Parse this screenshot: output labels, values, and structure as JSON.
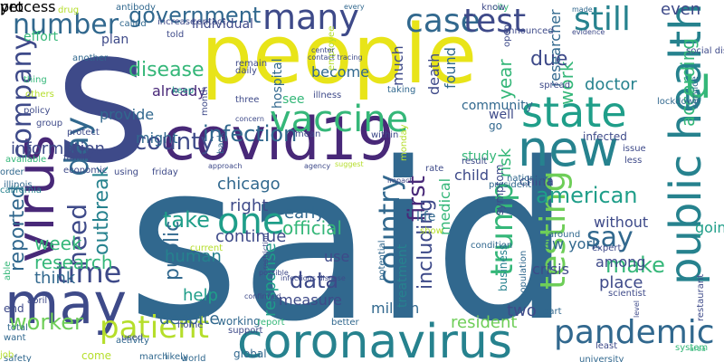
{
  "colors": {
    "background": "#ffffff",
    "palette": [
      "#440154",
      "#482878",
      "#3e4a89",
      "#31688e",
      "#26828e",
      "#1f9e89",
      "#35b779",
      "#6ece58",
      "#b5de2b",
      "#fde725"
    ]
  },
  "words": [
    {
      "text": "said",
      "color": "#31688e"
    },
    {
      "text": "s",
      "color": "#3e4a89"
    },
    {
      "text": "people",
      "color": "#e8e419"
    },
    {
      "text": "covid19",
      "color": "#482878"
    },
    {
      "text": "coronavirus",
      "color": "#26828e"
    },
    {
      "text": "may",
      "color": "#3e4a89"
    },
    {
      "text": "virus",
      "color": "#482878"
    },
    {
      "text": "new",
      "color": "#26828e"
    },
    {
      "text": "state",
      "color": "#1f9e89"
    },
    {
      "text": "case",
      "color": "#31688e"
    },
    {
      "text": "test",
      "color": "#3e4a89"
    },
    {
      "text": "vaccine",
      "color": "#35b779"
    },
    {
      "text": "one",
      "color": "#1f9e89"
    },
    {
      "text": "public health",
      "color": "#26828e"
    },
    {
      "text": "pandemic",
      "color": "#31688e"
    },
    {
      "text": "patient",
      "color": "#b5de2b"
    },
    {
      "text": "testing",
      "color": "#6ece58"
    },
    {
      "text": "trump",
      "color": "#35b779"
    },
    {
      "text": "many",
      "color": "#3e4a89"
    },
    {
      "text": "u",
      "color": "#35b779"
    },
    {
      "text": "time",
      "color": "#3e4a89"
    },
    {
      "text": "day",
      "color": "#31688e"
    },
    {
      "text": "number",
      "color": "#31688e"
    },
    {
      "text": "country",
      "color": "#31688e"
    },
    {
      "text": "still",
      "color": "#26828e"
    },
    {
      "text": "need",
      "color": "#3e4a89"
    },
    {
      "text": "company",
      "color": "#3e4a89"
    },
    {
      "text": "say",
      "color": "#31688e"
    },
    {
      "text": "government",
      "color": "#31688e"
    },
    {
      "text": "disease",
      "color": "#35b779"
    },
    {
      "text": "county",
      "color": "#3e4a89"
    },
    {
      "text": "infection",
      "color": "#31688e"
    },
    {
      "text": "american",
      "color": "#1f9e89"
    },
    {
      "text": "reported",
      "color": "#31688e"
    },
    {
      "text": "outbreak",
      "color": "#26828e"
    },
    {
      "text": "worker",
      "color": "#6ece58"
    },
    {
      "text": "make",
      "color": "#35b779"
    },
    {
      "text": "take",
      "color": "#1f9e89"
    },
    {
      "text": "data",
      "color": "#3e4a89"
    },
    {
      "text": "first",
      "color": "#482878"
    },
    {
      "text": "including",
      "color": "#3e4a89"
    },
    {
      "text": "public",
      "color": "#31688e"
    },
    {
      "text": "year",
      "color": "#35b779"
    },
    {
      "text": "according",
      "color": "#35b779"
    },
    {
      "text": "work",
      "color": "#35b779"
    },
    {
      "text": "even",
      "color": "#3e4a89"
    },
    {
      "text": "due",
      "color": "#3e4a89"
    },
    {
      "text": "research",
      "color": "#35b779"
    },
    {
      "text": "information",
      "color": "#3e4a89"
    },
    {
      "text": "week",
      "color": "#35b779"
    },
    {
      "text": "think",
      "color": "#31688e"
    },
    {
      "text": "help",
      "color": "#1f9e89"
    },
    {
      "text": "despite",
      "color": "#31688e"
    },
    {
      "text": "human",
      "color": "#26828e"
    },
    {
      "text": "official",
      "color": "#35b779"
    },
    {
      "text": "continue",
      "color": "#3e4a89"
    },
    {
      "text": "right",
      "color": "#3e4a89"
    },
    {
      "text": "chicago",
      "color": "#31688e"
    },
    {
      "text": "early",
      "color": "#31688e"
    },
    {
      "text": "use",
      "color": "#3e4a89"
    },
    {
      "text": "response",
      "color": "#1f9e89"
    },
    {
      "text": "measure",
      "color": "#3e4a89"
    },
    {
      "text": "million",
      "color": "#31688e"
    },
    {
      "text": "resident",
      "color": "#6ece58"
    },
    {
      "text": "new york",
      "color": "#31688e"
    },
    {
      "text": "crisis",
      "color": "#3e4a89"
    },
    {
      "text": "two",
      "color": "#3e4a89"
    },
    {
      "text": "place",
      "color": "#3e4a89"
    },
    {
      "text": "among",
      "color": "#3e4a89"
    },
    {
      "text": "without",
      "color": "#3e4a89"
    },
    {
      "text": "going",
      "color": "#1f9e89"
    },
    {
      "text": "doctor",
      "color": "#26828e"
    },
    {
      "text": "researcher",
      "color": "#31688e"
    },
    {
      "text": "much",
      "color": "#3e4a89"
    },
    {
      "text": "death",
      "color": "#3e4a89"
    },
    {
      "text": "found",
      "color": "#31688e"
    },
    {
      "text": "become",
      "color": "#31688e"
    },
    {
      "text": "see",
      "color": "#35b779"
    },
    {
      "text": "might",
      "color": "#31688e"
    },
    {
      "text": "provide",
      "color": "#31688e"
    },
    {
      "text": "already",
      "color": "#482878"
    },
    {
      "text": "hospital",
      "color": "#31688e"
    },
    {
      "text": "individual",
      "color": "#3e4a89"
    },
    {
      "text": "plan",
      "color": "#3e4a89"
    },
    {
      "text": "effort",
      "color": "#35b779"
    },
    {
      "text": "community",
      "color": "#31688e"
    },
    {
      "text": "well",
      "color": "#3e4a89"
    },
    {
      "text": "go",
      "color": "#31688e"
    },
    {
      "text": "child",
      "color": "#3e4a89"
    },
    {
      "text": "risk",
      "color": "#35b779"
    },
    {
      "text": "china",
      "color": "#3e4a89"
    },
    {
      "text": "medical",
      "color": "#35b779"
    },
    {
      "text": "life",
      "color": "#31688e"
    },
    {
      "text": "treatment",
      "color": "#26828e"
    },
    {
      "text": "symptom",
      "color": "#3e4a89"
    },
    {
      "text": "business",
      "color": "#26828e"
    },
    {
      "text": "potential",
      "color": "#31688e"
    },
    {
      "text": "population",
      "color": "#31688e"
    },
    {
      "text": "study",
      "color": "#35b779"
    },
    {
      "text": "spread",
      "color": "#3e4a89"
    },
    {
      "text": "lockdown",
      "color": "#31688e"
    },
    {
      "text": "infected",
      "color": "#3e4a89"
    },
    {
      "text": "issue",
      "color": "#3e4a89"
    },
    {
      "text": "less",
      "color": "#3e4a89"
    },
    {
      "text": "result",
      "color": "#3e4a89"
    },
    {
      "text": "rate",
      "color": "#3e4a89"
    },
    {
      "text": "monday",
      "color": "#b5de2b"
    },
    {
      "text": "taking",
      "color": "#31688e"
    },
    {
      "text": "within",
      "color": "#3e4a89"
    },
    {
      "text": "mean",
      "color": "#3e4a89"
    },
    {
      "text": "using",
      "color": "#3e4a89"
    },
    {
      "text": "friday",
      "color": "#3e4a89"
    },
    {
      "text": "working",
      "color": "#31688e"
    },
    {
      "text": "home",
      "color": "#3e4a89"
    },
    {
      "text": "support",
      "color": "#3e4a89"
    },
    {
      "text": "better",
      "color": "#31688e"
    },
    {
      "text": "global",
      "color": "#31688e"
    },
    {
      "text": "come",
      "color": "#b5de2b"
    },
    {
      "text": "used",
      "color": "#3e4a89"
    },
    {
      "text": "march",
      "color": "#31688e"
    },
    {
      "text": "likely",
      "color": "#31688e"
    },
    {
      "text": "world",
      "color": "#31688e"
    },
    {
      "text": "end",
      "color": "#3e4a89"
    },
    {
      "text": "april",
      "color": "#3e4a89"
    },
    {
      "text": "total",
      "color": "#31688e"
    },
    {
      "text": "activity",
      "color": "#31688e"
    },
    {
      "text": "want",
      "color": "#31688e"
    },
    {
      "text": "safety",
      "color": "#31688e"
    },
    {
      "text": "able",
      "color": "#35b779"
    },
    {
      "text": "illinois",
      "color": "#31688e"
    },
    {
      "text": "available",
      "color": "#35b779"
    },
    {
      "text": "protect",
      "color": "#3e4a89"
    },
    {
      "text": "economic",
      "color": "#3e4a89"
    },
    {
      "text": "family",
      "color": "#3e4a89"
    },
    {
      "text": "group",
      "color": "#3e4a89"
    },
    {
      "text": "policy",
      "color": "#3e4a89"
    },
    {
      "text": "others",
      "color": "#b5de2b"
    },
    {
      "text": "thing",
      "color": "#35b779"
    },
    {
      "text": "another",
      "color": "#31688e"
    },
    {
      "text": "drug",
      "color": "#b5de2b"
    },
    {
      "text": "antibody",
      "color": "#31688e"
    },
    {
      "text": "called",
      "color": "#31688e"
    },
    {
      "text": "increase",
      "color": "#3e4a89"
    },
    {
      "text": "contact",
      "color": "#3e4a89"
    },
    {
      "text": "told",
      "color": "#3e4a89"
    },
    {
      "text": "remain",
      "color": "#3e4a89"
    },
    {
      "text": "daily",
      "color": "#3e4a89"
    },
    {
      "text": "keep",
      "color": "#1f9e89"
    },
    {
      "text": "three",
      "color": "#3e4a89"
    },
    {
      "text": "illness",
      "color": "#3e4a89"
    },
    {
      "text": "employee",
      "color": "#b5de2b"
    },
    {
      "text": "announced",
      "color": "#3e4a89"
    },
    {
      "text": "open",
      "color": "#3e4a89"
    },
    {
      "text": "city",
      "color": "#35b779"
    },
    {
      "text": "know",
      "color": "#3e4a89"
    },
    {
      "text": "part",
      "color": "#31688e"
    },
    {
      "text": "expert",
      "color": "#3e4a89"
    },
    {
      "text": "scientist",
      "color": "#3e4a89"
    },
    {
      "text": "system",
      "color": "#35b779"
    },
    {
      "text": "least",
      "color": "#3e4a89"
    },
    {
      "text": "university",
      "color": "#31688e"
    },
    {
      "text": "restaurant",
      "color": "#3e4a89"
    },
    {
      "text": "social distancing",
      "color": "#3e4a89"
    },
    {
      "text": "service",
      "color": "#31688e"
    },
    {
      "text": "president",
      "color": "#31688e"
    },
    {
      "text": "national",
      "color": "#31688e"
    },
    {
      "text": "report",
      "color": "#35b779"
    },
    {
      "text": "show",
      "color": "#b5de2b"
    },
    {
      "text": "condition",
      "color": "#31688e"
    },
    {
      "text": "around",
      "color": "#31688e"
    },
    {
      "text": "month",
      "color": "#3e4a89"
    },
    {
      "text": "back",
      "color": "#31688e"
    },
    {
      "text": "current",
      "color": "#b5de2b"
    },
    {
      "text": "job",
      "color": "#b5de2b"
    },
    {
      "text": "california",
      "color": "#26828e"
    },
    {
      "text": "order",
      "color": "#31688e"
    },
    {
      "text": "made",
      "color": "#31688e"
    },
    {
      "text": "every",
      "color": "#31688e"
    },
    {
      "text": "evidence",
      "color": "#3e4a89"
    },
    {
      "text": "contact tracing",
      "color": "#3e4a89"
    },
    {
      "text": "center",
      "color": "#3e4a89"
    },
    {
      "text": "concern",
      "color": "#3e4a89"
    },
    {
      "text": "suggest",
      "color": "#b5de2b"
    },
    {
      "text": "agency",
      "color": "#3e4a89"
    },
    {
      "text": "impact",
      "color": "#3e4a89"
    },
    {
      "text": "approach",
      "color": "#3e4a89"
    },
    {
      "text": "possible",
      "color": "#3e4a89"
    },
    {
      "text": "confirmed",
      "color": "#3e4a89"
    },
    {
      "text": "infectious disease",
      "color": "#3e4a89"
    },
    {
      "text": "restriction",
      "color": "#3e4a89"
    },
    {
      "text": "level",
      "color": "#3e4a89"
    },
    {
      "text": "area",
      "color": "#35b779"
    },
    {
      "text": "process",
      "color": "#3e4a89"
    },
    {
      "text": "yet",
      "color": "#3e4a89"
    }
  ]
}
